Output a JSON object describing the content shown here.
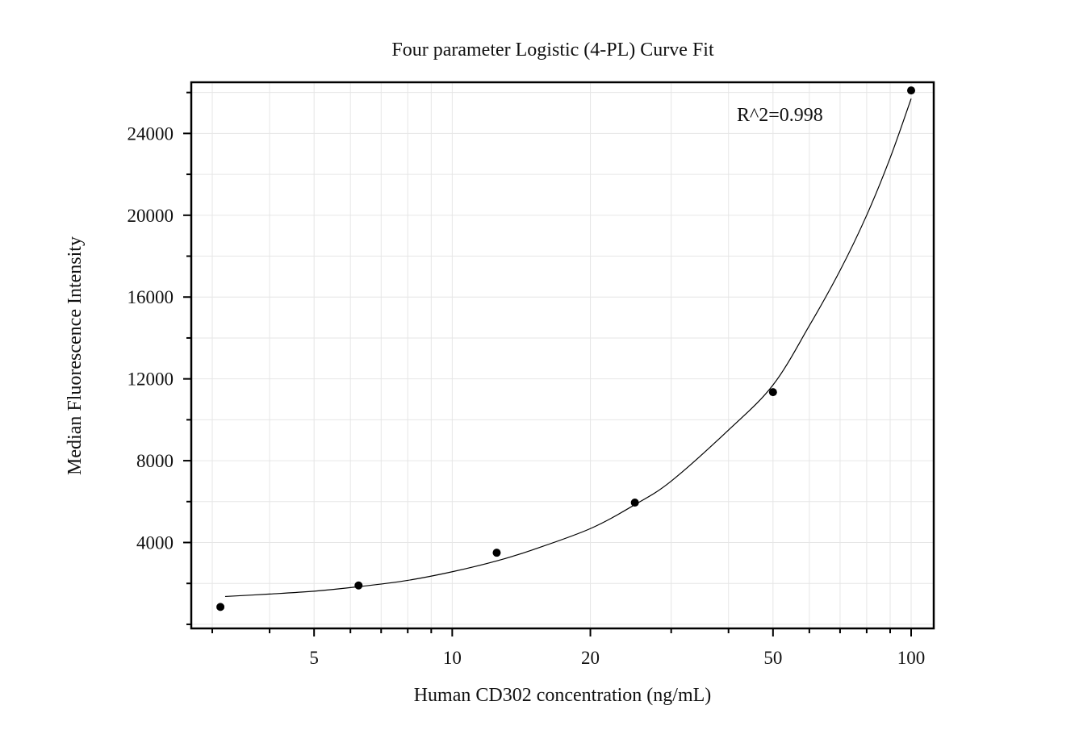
{
  "chart_data": {
    "type": "scatter",
    "title": "Four parameter Logistic (4-PL) Curve Fit",
    "xlabel": "Human CD302 concentration (ng/mL)",
    "ylabel": "Median Fluorescence Intensity",
    "x_scale": "log",
    "xlim": [
      2.7,
      112
    ],
    "ylim": [
      -200,
      26500
    ],
    "x_ticks": [
      5,
      10,
      20,
      50,
      100
    ],
    "x_tick_labels": [
      "5",
      "10",
      "20",
      "50",
      "100"
    ],
    "y_ticks": [
      4000,
      8000,
      12000,
      16000,
      20000,
      24000
    ],
    "y_tick_labels": [
      "4000",
      "8000",
      "12000",
      "16000",
      "20000",
      "24000"
    ],
    "grid": true,
    "annotation": "R^2=0.998",
    "series": [
      {
        "points": {
          "x": [
            3.125,
            6.25,
            12.5,
            25,
            50,
            100
          ],
          "y": [
            850,
            1900,
            3500,
            5950,
            11350,
            26100
          ]
        },
        "fit_curve": {
          "x": [
            3.2,
            4,
            5,
            6.25,
            8,
            10,
            12.5,
            15,
            20,
            25,
            30,
            40,
            50,
            60,
            70,
            80,
            90,
            100
          ],
          "y": [
            1360,
            1480,
            1620,
            1840,
            2150,
            2570,
            3100,
            3650,
            4680,
            5850,
            7000,
            9500,
            11700,
            14600,
            17300,
            20000,
            22800,
            25700
          ]
        }
      }
    ]
  }
}
